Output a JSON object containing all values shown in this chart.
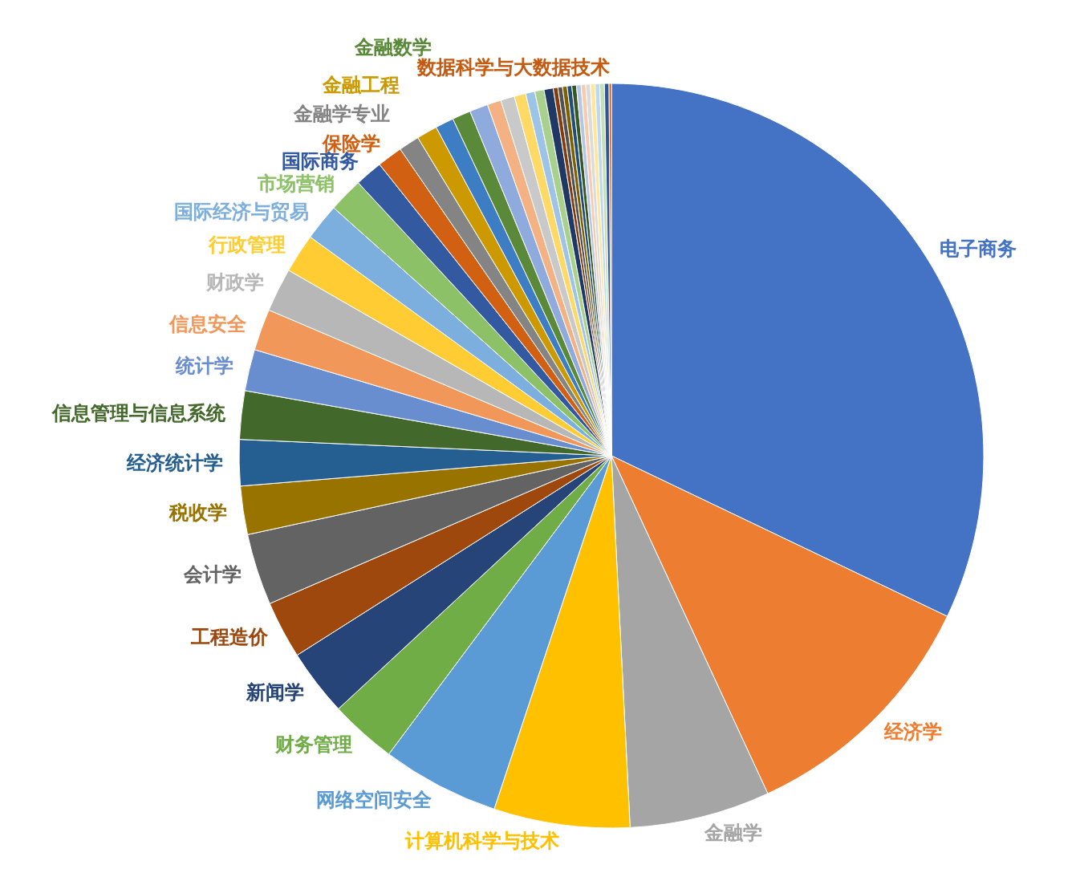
{
  "chart_data": {
    "type": "pie",
    "categories": [
      "电子商务",
      "经济学",
      "金融学",
      "计算机科学与技术",
      "网络空间安全",
      "财务管理",
      "新闻学",
      "工程造价",
      "会计学",
      "税收学",
      "经济统计学",
      "信息管理与信息系统",
      "统计学",
      "信息安全",
      "财政学",
      "行政管理",
      "国际经济与贸易",
      "市场营销",
      "国际商务",
      "保险学",
      "金融学专业",
      "金融工程",
      null,
      "金融数学",
      null,
      null,
      null,
      null,
      null,
      null,
      null,
      null,
      null,
      null,
      null,
      null,
      null,
      null,
      null,
      null,
      null,
      null,
      null,
      "数据科学与大数据技术"
    ],
    "values": [
      32.1,
      11.0,
      6.1,
      5.9,
      5.1,
      2.9,
      2.9,
      2.5,
      3.1,
      2.1,
      2.0,
      2.1,
      1.8,
      1.8,
      1.9,
      1.7,
      1.6,
      1.5,
      1.2,
      1.1,
      0.9,
      0.9,
      0.8,
      0.8,
      0.8,
      0.6,
      0.6,
      0.5,
      0.4,
      0.4,
      0.4,
      0.2,
      0.2,
      0.2,
      0.2,
      0.2,
      0.2,
      0.2,
      0.2,
      0.2,
      0.2,
      0.2,
      0.2,
      0.1
    ],
    "colors": [
      "#4472c4",
      "#ed7d31",
      "#a5a5a5",
      "#ffc000",
      "#5b9bd5",
      "#70ad47",
      "#264478",
      "#9e480e",
      "#636363",
      "#997300",
      "#255e91",
      "#43682b",
      "#698ed0",
      "#f1975a",
      "#b7b7b7",
      "#ffcd33",
      "#7cafdd",
      "#8cc168",
      "#335aa1",
      "#d26012",
      "#848484",
      "#cc9a00",
      "#3c7dc4",
      "#5a8a39",
      "#8faadc",
      "#f4b183",
      "#c9c9c9",
      "#ffd966",
      "#9dc3e6",
      "#a9d18e",
      "#203864",
      "#843c0c",
      "#525252",
      "#7f6000",
      "#1f4e79",
      "#385723",
      "#b4c7e7",
      "#f8cbad",
      "#dbdbdb",
      "#ffe699",
      "#bdd7ee",
      "#c5e0b4",
      "#2f5597",
      "#c55a11"
    ]
  }
}
